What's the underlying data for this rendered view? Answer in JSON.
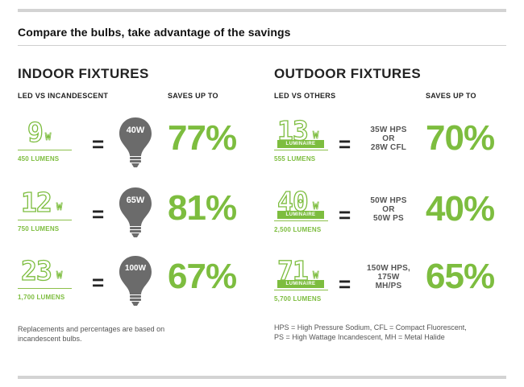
{
  "title": "Compare the bulbs, take advantage of the savings",
  "colors": {
    "accent": "#7dbd3f",
    "bulb": "#6b6b6b",
    "rule": "#d3d3d3"
  },
  "indoor": {
    "heading": "INDOOR FIXTURES",
    "col_left": "LED VS INCANDESCENT",
    "col_right": "SAVES UP TO",
    "rows": [
      {
        "watt": "9",
        "unit": "W",
        "lumens": "450 LUMENS",
        "equals": "=",
        "bulb": "40W",
        "pct": "77%"
      },
      {
        "watt": "12",
        "unit": "W",
        "lumens": "750 LUMENS",
        "equals": "=",
        "bulb": "65W",
        "pct": "81%"
      },
      {
        "watt": "23",
        "unit": "W",
        "lumens": "1,700 LUMENS",
        "equals": "=",
        "bulb": "100W",
        "pct": "67%"
      }
    ],
    "footnote_1": "Replacements and percentages are based on",
    "footnote_2": "incandescent bulbs."
  },
  "outdoor": {
    "heading": "OUTDOOR FIXTURES",
    "col_left": "LED VS OTHERS",
    "col_right": "SAVES UP TO",
    "rows": [
      {
        "watt": "13",
        "unit": "W",
        "badge": "LUMINAIRE",
        "lumens": "555 LUMENS",
        "equals": "=",
        "compare": [
          "35W HPS",
          "OR",
          "28W CFL"
        ],
        "pct": "70%"
      },
      {
        "watt": "40",
        "unit": "W",
        "badge": "LUMINAIRE",
        "lumens": "2,500 LUMENS",
        "equals": "=",
        "compare": [
          "50W HPS",
          "OR",
          "50W PS"
        ],
        "pct": "40%"
      },
      {
        "watt": "71",
        "unit": "W",
        "badge": "LUMINAIRE",
        "lumens": "5,700 LUMENS",
        "equals": "=",
        "compare": [
          "150W HPS,",
          "175W",
          "MH/PS"
        ],
        "pct": "65%"
      }
    ],
    "footnote_1": "HPS = High Pressure Sodium, CFL = Compact Fluorescent,",
    "footnote_2": "PS = High Wattage Incandescent, MH = Metal Halide"
  }
}
